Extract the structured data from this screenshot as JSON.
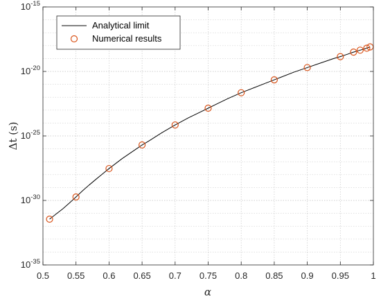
{
  "chart_data": {
    "type": "line",
    "xlabel": "α",
    "ylabel": "Δt (s)",
    "xlim": [
      0.5,
      1
    ],
    "ylim": [
      -35,
      -15
    ],
    "yscale": "log",
    "grid": true,
    "minor_grid_y": true,
    "legend_position": "top-left",
    "x_ticks": [
      "0.5",
      "0.55",
      "0.6",
      "0.65",
      "0.7",
      "0.75",
      "0.8",
      "0.85",
      "0.9",
      "0.95",
      "1"
    ],
    "y_ticks": [
      {
        "base": "10",
        "exp": "-35",
        "value": -35
      },
      {
        "base": "10",
        "exp": "-30",
        "value": -30
      },
      {
        "base": "10",
        "exp": "-25",
        "value": -25
      },
      {
        "base": "10",
        "exp": "-20",
        "value": -20
      },
      {
        "base": "10",
        "exp": "-15",
        "value": -15
      }
    ],
    "series": [
      {
        "name": "Analytical limit",
        "style": "line",
        "color": "#000000",
        "x": [
          0.51,
          0.52,
          0.53,
          0.54,
          0.55,
          0.56,
          0.57,
          0.58,
          0.59,
          0.6,
          0.62,
          0.64,
          0.65,
          0.66,
          0.68,
          0.7,
          0.72,
          0.74,
          0.75,
          0.76,
          0.78,
          0.8,
          0.82,
          0.84,
          0.85,
          0.86,
          0.88,
          0.9,
          0.92,
          0.94,
          0.95,
          0.96,
          0.97,
          0.98,
          0.99,
          0.995
        ],
        "log10_y": [
          -31.45,
          -31.05,
          -30.65,
          -30.2,
          -29.73,
          -29.25,
          -28.8,
          -28.37,
          -27.95,
          -27.53,
          -26.75,
          -26.05,
          -25.7,
          -25.4,
          -24.75,
          -24.15,
          -23.6,
          -23.1,
          -22.85,
          -22.6,
          -22.1,
          -21.65,
          -21.25,
          -20.85,
          -20.65,
          -20.45,
          -20.05,
          -19.7,
          -19.35,
          -19.0,
          -18.85,
          -18.68,
          -18.5,
          -18.35,
          -18.2,
          -18.1
        ]
      },
      {
        "name": "Numerical results",
        "style": "markers",
        "marker": "circle",
        "color": "#d95319",
        "x": [
          0.51,
          0.55,
          0.6,
          0.65,
          0.7,
          0.75,
          0.8,
          0.85,
          0.9,
          0.95,
          0.97,
          0.98,
          0.99,
          0.995
        ],
        "log10_y": [
          -31.45,
          -29.73,
          -27.53,
          -25.7,
          -24.15,
          -22.85,
          -21.65,
          -20.65,
          -19.7,
          -18.85,
          -18.5,
          -18.35,
          -18.2,
          -18.1
        ]
      }
    ]
  }
}
